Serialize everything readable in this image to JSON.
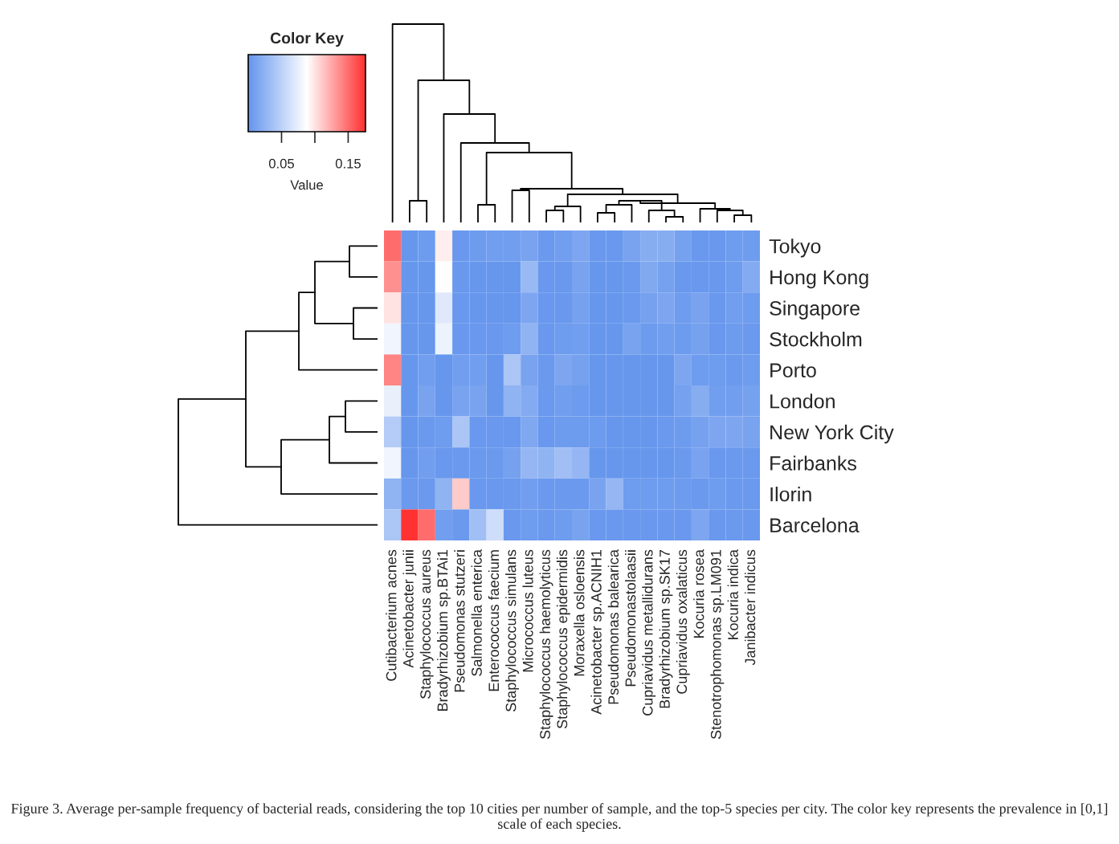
{
  "chart_data": {
    "type": "heatmap",
    "legend_title": "Color Key",
    "clabel": "Value",
    "clim": [
      0,
      0.176
    ],
    "cticks": [
      0.05,
      {
        "value": 0.1,
        "label": null
      },
      0.15
    ],
    "categories": [
      "Cutibacterium acnes",
      "Acinetobacter junii",
      "Staphylococcus aureus",
      "Bradyrhizobium sp.BTAi1",
      "Pseudomonas stutzeri",
      "Salmonella enterica",
      "Enterococcus faecium",
      "Staphylococcus simulans",
      "Micrococcus luteus",
      "Staphylococcus haemolyticus",
      "Staphylococcus epidermidis",
      "Moraxella osloensis",
      "Acinetobacter sp.ACNIH1",
      "Pseudomonas balearica",
      "Pseudomonastolaasii",
      "Cupriavidus metallidurans",
      "Bradyrhizobium sp.SK17",
      "Cupriavidus oxalaticus",
      "Kocuria rosea",
      "Stenotrophomonas sp.LM091",
      "Kocuria indica",
      "Janibacter indicus"
    ],
    "y_categories": [
      "Tokyo",
      "Hong Kong",
      "Singapore",
      "Stockholm",
      "Porto",
      "London",
      "New York City",
      "Fairbanks",
      "Ilorin",
      "Barcelona"
    ],
    "cells": [
      [
        0.15,
        0.002,
        0.005,
        0.095,
        0.003,
        0.005,
        0.008,
        0.008,
        0.012,
        0.004,
        0.008,
        0.015,
        0.003,
        0.003,
        0.012,
        0.02,
        0.02,
        0.01,
        0.003,
        0.003,
        0.006,
        0.006
      ],
      [
        0.135,
        0.002,
        0.002,
        0.088,
        0.003,
        0.002,
        0.002,
        0.002,
        0.03,
        0.003,
        0.003,
        0.012,
        0.002,
        0.002,
        0.004,
        0.017,
        0.01,
        0.003,
        0.003,
        0.003,
        0.006,
        0.018
      ],
      [
        0.1,
        0.002,
        0.002,
        0.07,
        0.003,
        0.002,
        0.002,
        0.002,
        0.015,
        0.003,
        0.003,
        0.01,
        0.002,
        0.002,
        0.004,
        0.01,
        0.015,
        0.006,
        0.012,
        0.003,
        0.008,
        0.006
      ],
      [
        0.08,
        0.002,
        0.002,
        0.078,
        0.003,
        0.003,
        0.003,
        0.006,
        0.025,
        0.003,
        0.006,
        0.008,
        0.002,
        0.002,
        0.012,
        0.005,
        0.008,
        0.005,
        0.01,
        0.003,
        0.005,
        0.004
      ],
      [
        0.14,
        0.002,
        0.008,
        0.002,
        0.008,
        0.008,
        0.002,
        0.04,
        0.012,
        0.004,
        0.015,
        0.01,
        0.002,
        0.002,
        0.002,
        0.002,
        0.002,
        0.015,
        0.006,
        0.006,
        0.004,
        0.006
      ],
      [
        0.075,
        0.002,
        0.012,
        0.002,
        0.012,
        0.012,
        0.002,
        0.025,
        0.018,
        0.004,
        0.008,
        0.005,
        0.002,
        0.002,
        0.002,
        0.002,
        0.002,
        0.01,
        0.02,
        0.008,
        0.008,
        0.01
      ],
      [
        0.045,
        0.002,
        0.004,
        0.006,
        0.04,
        0.003,
        0.003,
        0.003,
        0.016,
        0.003,
        0.005,
        0.005,
        0.005,
        0.002,
        0.002,
        0.002,
        0.004,
        0.005,
        0.01,
        0.015,
        0.015,
        0.012
      ],
      [
        0.08,
        0.002,
        0.008,
        0.003,
        0.004,
        0.004,
        0.004,
        0.01,
        0.028,
        0.025,
        0.035,
        0.028,
        0.002,
        0.002,
        0.002,
        0.002,
        0.002,
        0.004,
        0.012,
        0.003,
        0.004,
        0.004
      ],
      [
        0.025,
        0.004,
        0.004,
        0.025,
        0.11,
        0.003,
        0.003,
        0.004,
        0.008,
        0.004,
        0.004,
        0.004,
        0.012,
        0.028,
        0.006,
        0.006,
        0.006,
        0.005,
        0.004,
        0.006,
        0.004,
        0.004
      ],
      [
        0.04,
        0.175,
        0.15,
        0.008,
        0.004,
        0.035,
        0.06,
        0.003,
        0.006,
        0.004,
        0.006,
        0.012,
        0.003,
        0.003,
        0.003,
        0.003,
        0.003,
        0.003,
        0.015,
        0.003,
        0.004,
        0.003
      ]
    ],
    "annotations": [
      "Figure 3. Average per-sample frequency of bacterial reads, considering the top 10 cities per number of sample, and the top-5 species per city. The color key represents the prevalence in [0,1] scale of each species."
    ]
  }
}
